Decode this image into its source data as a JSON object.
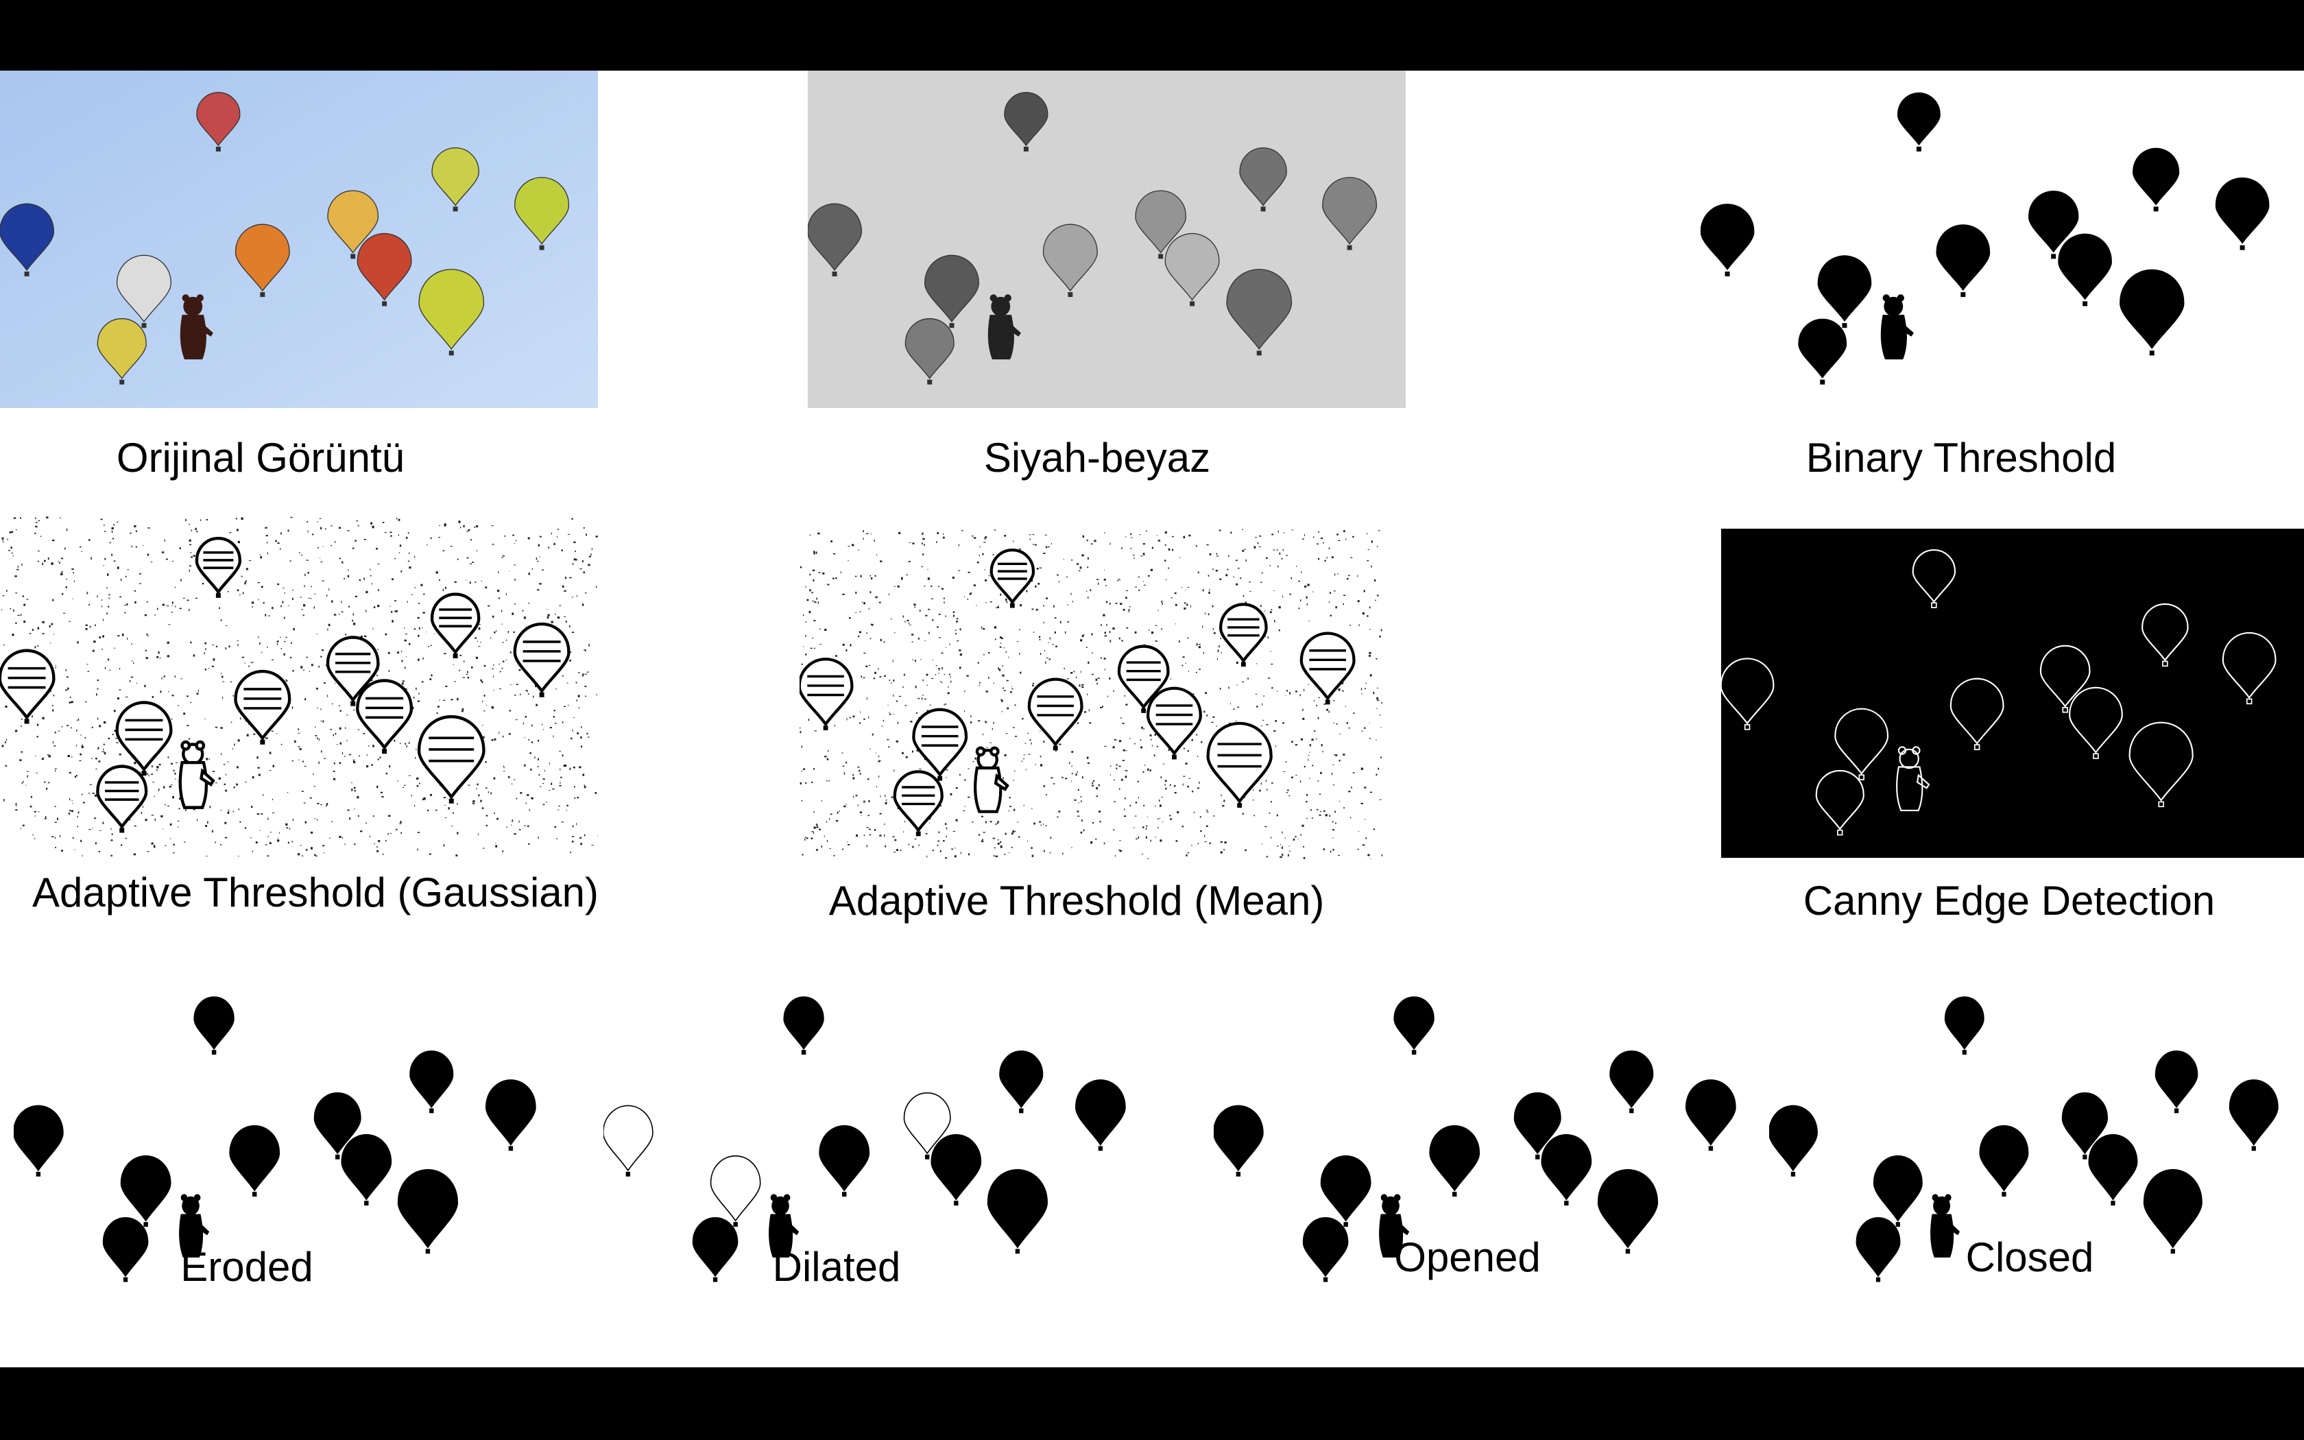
{
  "colors": {
    "letterbox": "#000000",
    "sheet": "#ffffff",
    "sky_top": "#a9c6ef",
    "sky_bottom": "#c9ddf6",
    "gray_sky": "#d3d3d3",
    "caption_text": "#000000"
  },
  "panels": {
    "original": {
      "caption": "Orijinal Görüntü",
      "style": "color"
    },
    "gray": {
      "caption": "Siyah-beyaz",
      "style": "gray"
    },
    "binary": {
      "caption": "Binary Threshold",
      "style": "binary"
    },
    "gaussian": {
      "caption": "Adaptive Threshold (Gaussian)",
      "style": "adaptive"
    },
    "mean": {
      "caption": "Adaptive Threshold (Mean)",
      "style": "adaptive"
    },
    "canny": {
      "caption": "Canny Edge Detection",
      "style": "canny"
    },
    "eroded": {
      "caption": "Eroded",
      "style": "morph"
    },
    "dilated": {
      "caption": "Dilated",
      "style": "morph"
    },
    "opened": {
      "caption": "Opened",
      "style": "morph"
    },
    "closed": {
      "caption": "Closed",
      "style": "morph"
    }
  },
  "balloon_colors": [
    "#c34a4a",
    "#1f3c9b",
    "#c9cf4a",
    "#bfcf3c",
    "#e3b34a",
    "#e07d2a",
    "#c7462f",
    "#dcdcdc",
    "#c7cf3a",
    "#d8c74a"
  ]
}
